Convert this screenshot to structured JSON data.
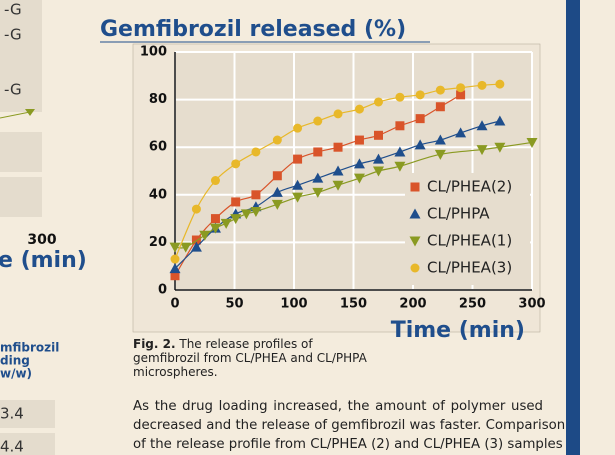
{
  "chart_data": {
    "type": "scatter",
    "title": "Gemfibrozil released (%)",
    "x_label": "Time (min)",
    "xlim": [
      0,
      300
    ],
    "xticks": [
      0,
      50,
      100,
      150,
      200,
      250,
      300
    ],
    "ylim": [
      0,
      100
    ],
    "yticks": [
      0,
      20,
      40,
      60,
      80,
      100
    ],
    "grid": true,
    "legend": "lower right",
    "series": [
      {
        "name": "CL/PHEA(2)",
        "color": "#d9542a",
        "marker": "square",
        "x": [
          0,
          18,
          34,
          51,
          68,
          86,
          103,
          120,
          137,
          155,
          171,
          189,
          206,
          223,
          240
        ],
        "values": [
          6,
          21,
          30,
          37,
          40,
          48,
          55,
          58,
          60,
          63,
          65,
          69,
          72,
          77,
          82
        ]
      },
      {
        "name": "CL/PHPA",
        "color": "#1f4e8c",
        "marker": "triangle",
        "x": [
          0,
          18,
          34,
          51,
          68,
          86,
          103,
          120,
          137,
          155,
          171,
          189,
          206,
          223,
          240,
          258,
          273
        ],
        "values": [
          9,
          18,
          26,
          32,
          35,
          41,
          44,
          47,
          50,
          53,
          55,
          58,
          61,
          63,
          66,
          69,
          71
        ]
      },
      {
        "name": "CL/PHEA(1)",
        "color": "#8a9a22",
        "marker": "triangle-down",
        "x": [
          0,
          9,
          25,
          34,
          43,
          51,
          60,
          68,
          86,
          103,
          120,
          137,
          155,
          171,
          189,
          223,
          258,
          273,
          300
        ],
        "values": [
          18,
          18,
          23,
          26,
          28,
          30,
          32,
          33,
          36,
          39,
          41,
          44,
          47,
          50,
          52,
          57,
          59,
          60,
          62
        ]
      },
      {
        "name": "CL/PHEA(3)",
        "color": "#e8b82a",
        "marker": "circle",
        "x": [
          0,
          18,
          34,
          51,
          68,
          86,
          103,
          120,
          137,
          155,
          171,
          189,
          206,
          223,
          240,
          258,
          273
        ],
        "values": [
          13,
          34,
          46,
          53,
          58,
          63,
          68,
          71,
          74,
          76,
          79,
          81,
          82,
          84,
          85,
          86,
          86.5
        ]
      }
    ]
  },
  "caption": {
    "label": "Fig. 2.",
    "text": "The release profiles of gemfibrozil from CL/PHEA and CL/PHPA microspheres."
  },
  "body": [
    "As the drug loading increased, the amount of polymer used",
    "decreased and the release of gemfibrozil was faster. Comparison",
    "of the release profile from CL/PHEA (2) and CL/PHEA (3) samples"
  ],
  "left_fragment": {
    "legend": [
      "-G",
      "-G",
      "-G"
    ],
    "x_tick": "300",
    "x_label": "e (min)",
    "header": [
      "mfibrozil",
      "ding",
      "w/w)"
    ],
    "cells": [
      "3.4",
      "4.4"
    ]
  }
}
